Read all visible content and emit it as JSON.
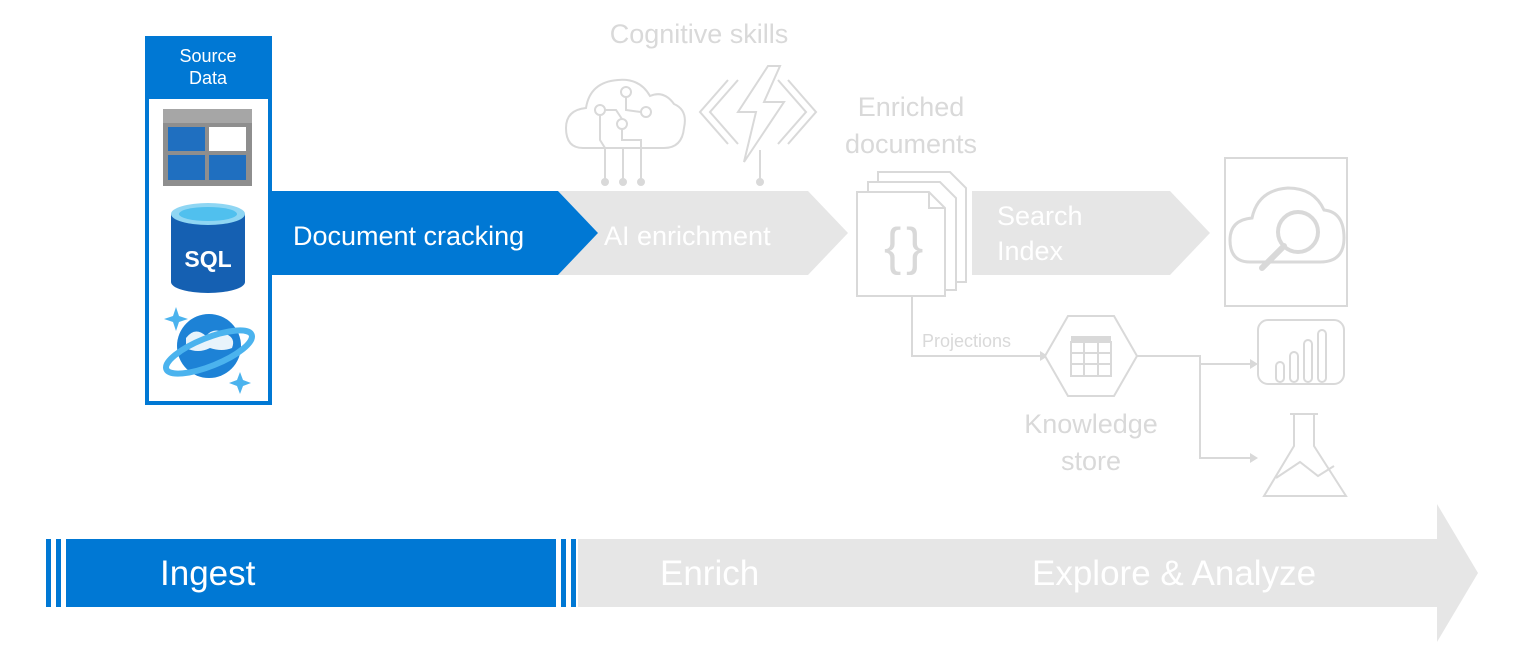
{
  "colors": {
    "accent": "#0078d4",
    "inactive_fill": "#e6e6e6",
    "inactive_text": "#ffffff",
    "light_text": "#d9d9d9",
    "outline": "#d9d9d9",
    "background": "#ffffff"
  },
  "source_data": {
    "title_line1": "Source",
    "title_line2": "Data",
    "icons": [
      "blob-storage-icon",
      "sql-database-icon",
      "cosmos-db-icon"
    ],
    "sql_label": "SQL"
  },
  "pipeline": {
    "document_cracking": "Document cracking",
    "ai_enrichment": "AI enrichment",
    "search_index_line1": "Search",
    "search_index_line2": "Index"
  },
  "cognitive_skills": {
    "label": "Cognitive skills",
    "icons": [
      "cognitive-services-brain-cloud-icon",
      "azure-functions-icon"
    ]
  },
  "enriched_documents": {
    "line1": "Enriched",
    "line2": "documents",
    "icon": "json-documents-icon"
  },
  "projections": {
    "label": "Projections"
  },
  "knowledge_store": {
    "line1": "Knowledge",
    "line2": "store",
    "icon": "table-storage-hexagon-icon"
  },
  "consumers": {
    "icons": [
      "search-cloud-icon",
      "power-bi-icon",
      "machine-learning-flask-icon"
    ]
  },
  "phases": {
    "ingest": "Ingest",
    "enrich": "Enrich",
    "explore": "Explore & Analyze"
  }
}
